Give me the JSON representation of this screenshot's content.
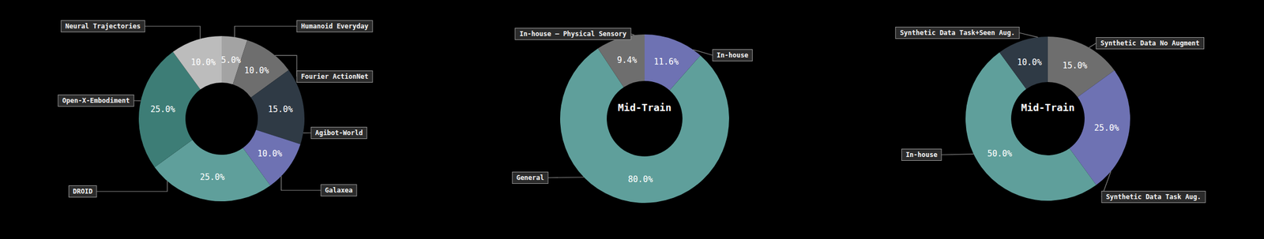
{
  "chart_data": [
    {
      "type": "donut",
      "categories": [
        "Humanoid Everyday",
        "Fourier ActionNet",
        "Agibot-World",
        "Galaxea",
        "DROID",
        "Open-X-Embodiment",
        "Neural Trajectories"
      ],
      "values": [
        5,
        10,
        15,
        10,
        25,
        25,
        10
      ],
      "value_labels": [
        "5.0%",
        "10.0%",
        "15.0%",
        "10.0%",
        "25.0%",
        "25.0%",
        "10.0%"
      ],
      "colors": [
        "#a3a3a3",
        "#6e6e6e",
        "#2f3a45",
        "#6e72b3",
        "#5f9f9b",
        "#3d7d76",
        "#bcbcbc"
      ],
      "data_labels": true
    },
    {
      "type": "donut",
      "title": "Mid-Train",
      "categories": [
        "In-house",
        "General",
        "In-house – Physical Sensory"
      ],
      "values": [
        11.6,
        80,
        9.4
      ],
      "value_labels": [
        "11.6%",
        "80.0%",
        "9.4%"
      ],
      "colors": [
        "#6e72b3",
        "#5f9f9b",
        "#6e6e6e"
      ],
      "data_labels": true
    },
    {
      "type": "donut",
      "title": "Mid-Train",
      "categories": [
        "Synthetic Data No Augment",
        "Synthetic Data Task Aug.",
        "In-house",
        "Synthetic Data Task+Seen Aug."
      ],
      "values": [
        15,
        25,
        50,
        10
      ],
      "value_labels": [
        "15.0%",
        "25.0%",
        "50.0%",
        "10.0%"
      ],
      "colors": [
        "#6e6e6e",
        "#6e72b3",
        "#5f9f9b",
        "#2f3a45"
      ],
      "data_labels": true
    }
  ]
}
